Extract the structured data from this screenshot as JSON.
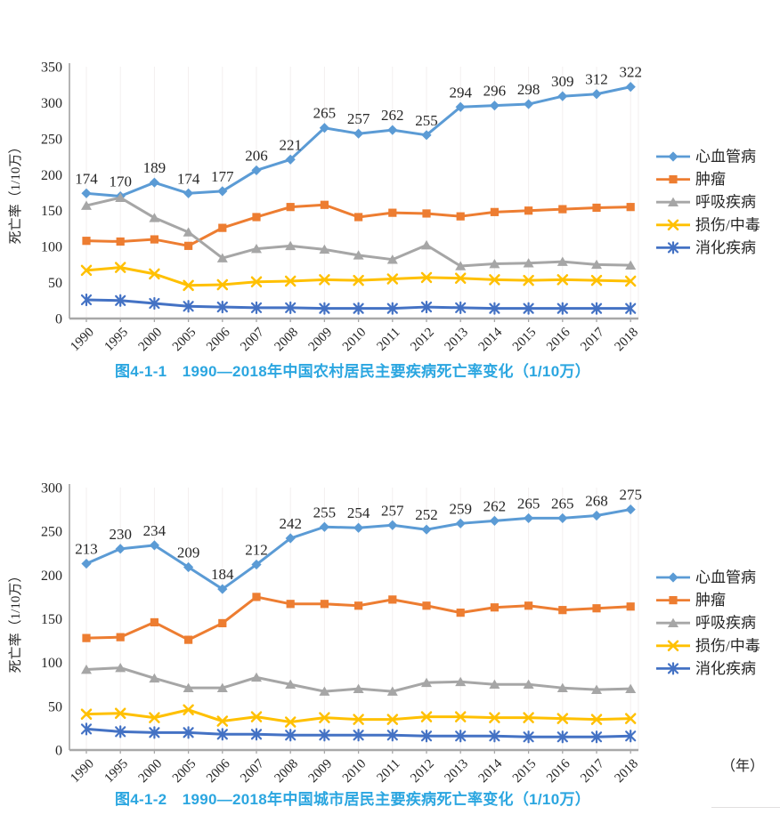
{
  "page": {
    "background": "#ffffff"
  },
  "styles": {
    "caption_color": "#2BA6E0",
    "axis_color": "#A8A8A8",
    "text_color": "#262626",
    "gridline_color": "#F3EFEF"
  },
  "chart_data": [
    {
      "type": "line",
      "title": "图4-1-1　1990—2018年中国农村居民主要疾病死亡率变化（1/10万）",
      "xlabel": "",
      "ylabel": "死亡率（1/10万）",
      "x": [
        "1990",
        "1995",
        "2000",
        "2005",
        "2006",
        "2007",
        "2008",
        "2009",
        "2010",
        "2011",
        "2012",
        "2013",
        "2014",
        "2015",
        "2016",
        "2017",
        "2018"
      ],
      "ylim": [
        0,
        350
      ],
      "yticks": [
        0,
        50,
        100,
        150,
        200,
        250,
        300,
        350
      ],
      "grid": "faint-vertical",
      "legend_position": "right",
      "series": [
        {
          "name": "心血管病",
          "color": "#5B9BD5",
          "marker": "diamond",
          "data_labels": true,
          "values": [
            174,
            170,
            189,
            174,
            177,
            206,
            221,
            265,
            257,
            262,
            255,
            294,
            296,
            298,
            309,
            312,
            322
          ]
        },
        {
          "name": "肿瘤",
          "color": "#ED7D31",
          "marker": "square",
          "data_labels": false,
          "values": [
            108,
            107,
            110,
            101,
            126,
            141,
            155,
            158,
            141,
            147,
            146,
            142,
            148,
            150,
            152,
            154,
            155
          ]
        },
        {
          "name": "呼吸疾病",
          "color": "#A6A6A6",
          "marker": "triangle",
          "data_labels": false,
          "values": [
            157,
            168,
            140,
            120,
            84,
            97,
            101,
            96,
            88,
            82,
            102,
            73,
            76,
            77,
            79,
            75,
            74
          ]
        },
        {
          "name": "损伤/中毒",
          "color": "#FFC000",
          "marker": "x",
          "data_labels": false,
          "values": [
            67,
            71,
            62,
            46,
            47,
            51,
            52,
            54,
            53,
            55,
            57,
            56,
            54,
            53,
            54,
            53,
            52
          ]
        },
        {
          "name": "消化疾病",
          "color": "#4472C4",
          "marker": "asterisk",
          "data_labels": false,
          "values": [
            26,
            25,
            21,
            17,
            16,
            15,
            15,
            14,
            14,
            14,
            16,
            15,
            14,
            14,
            14,
            14,
            14
          ]
        }
      ]
    },
    {
      "type": "line",
      "title": "图4-1-2　1990—2018年中国城市居民主要疾病死亡率变化（1/10万）",
      "xlabel": "",
      "ylabel": "死亡率（1/10万）",
      "x_unit_label": "（年）",
      "x": [
        "1990",
        "1995",
        "2000",
        "2005",
        "2006",
        "2007",
        "2008",
        "2009",
        "2010",
        "2011",
        "2012",
        "2013",
        "2014",
        "2015",
        "2016",
        "2017",
        "2018"
      ],
      "ylim": [
        0,
        300
      ],
      "yticks": [
        0,
        50,
        100,
        150,
        200,
        250,
        300
      ],
      "grid": "faint-vertical",
      "legend_position": "right",
      "series": [
        {
          "name": "心血管病",
          "color": "#5B9BD5",
          "marker": "diamond",
          "data_labels": true,
          "values": [
            213,
            230,
            234,
            209,
            184,
            212,
            242,
            255,
            254,
            257,
            252,
            259,
            262,
            265,
            265,
            268,
            275
          ]
        },
        {
          "name": "肿瘤",
          "color": "#ED7D31",
          "marker": "square",
          "data_labels": false,
          "values": [
            128,
            129,
            146,
            126,
            145,
            175,
            167,
            167,
            165,
            172,
            165,
            157,
            163,
            165,
            160,
            162,
            164
          ]
        },
        {
          "name": "呼吸疾病",
          "color": "#A6A6A6",
          "marker": "triangle",
          "data_labels": false,
          "values": [
            92,
            94,
            82,
            71,
            71,
            83,
            75,
            67,
            70,
            67,
            77,
            78,
            75,
            75,
            71,
            69,
            70
          ]
        },
        {
          "name": "损伤/中毒",
          "color": "#FFC000",
          "marker": "x",
          "data_labels": false,
          "values": [
            41,
            42,
            37,
            46,
            33,
            38,
            32,
            37,
            35,
            35,
            38,
            38,
            37,
            37,
            36,
            35,
            36
          ]
        },
        {
          "name": "消化疾病",
          "color": "#4472C4",
          "marker": "asterisk",
          "data_labels": false,
          "values": [
            24,
            21,
            20,
            20,
            18,
            18,
            17,
            17,
            17,
            17,
            16,
            16,
            16,
            15,
            15,
            15,
            16
          ]
        }
      ]
    }
  ]
}
